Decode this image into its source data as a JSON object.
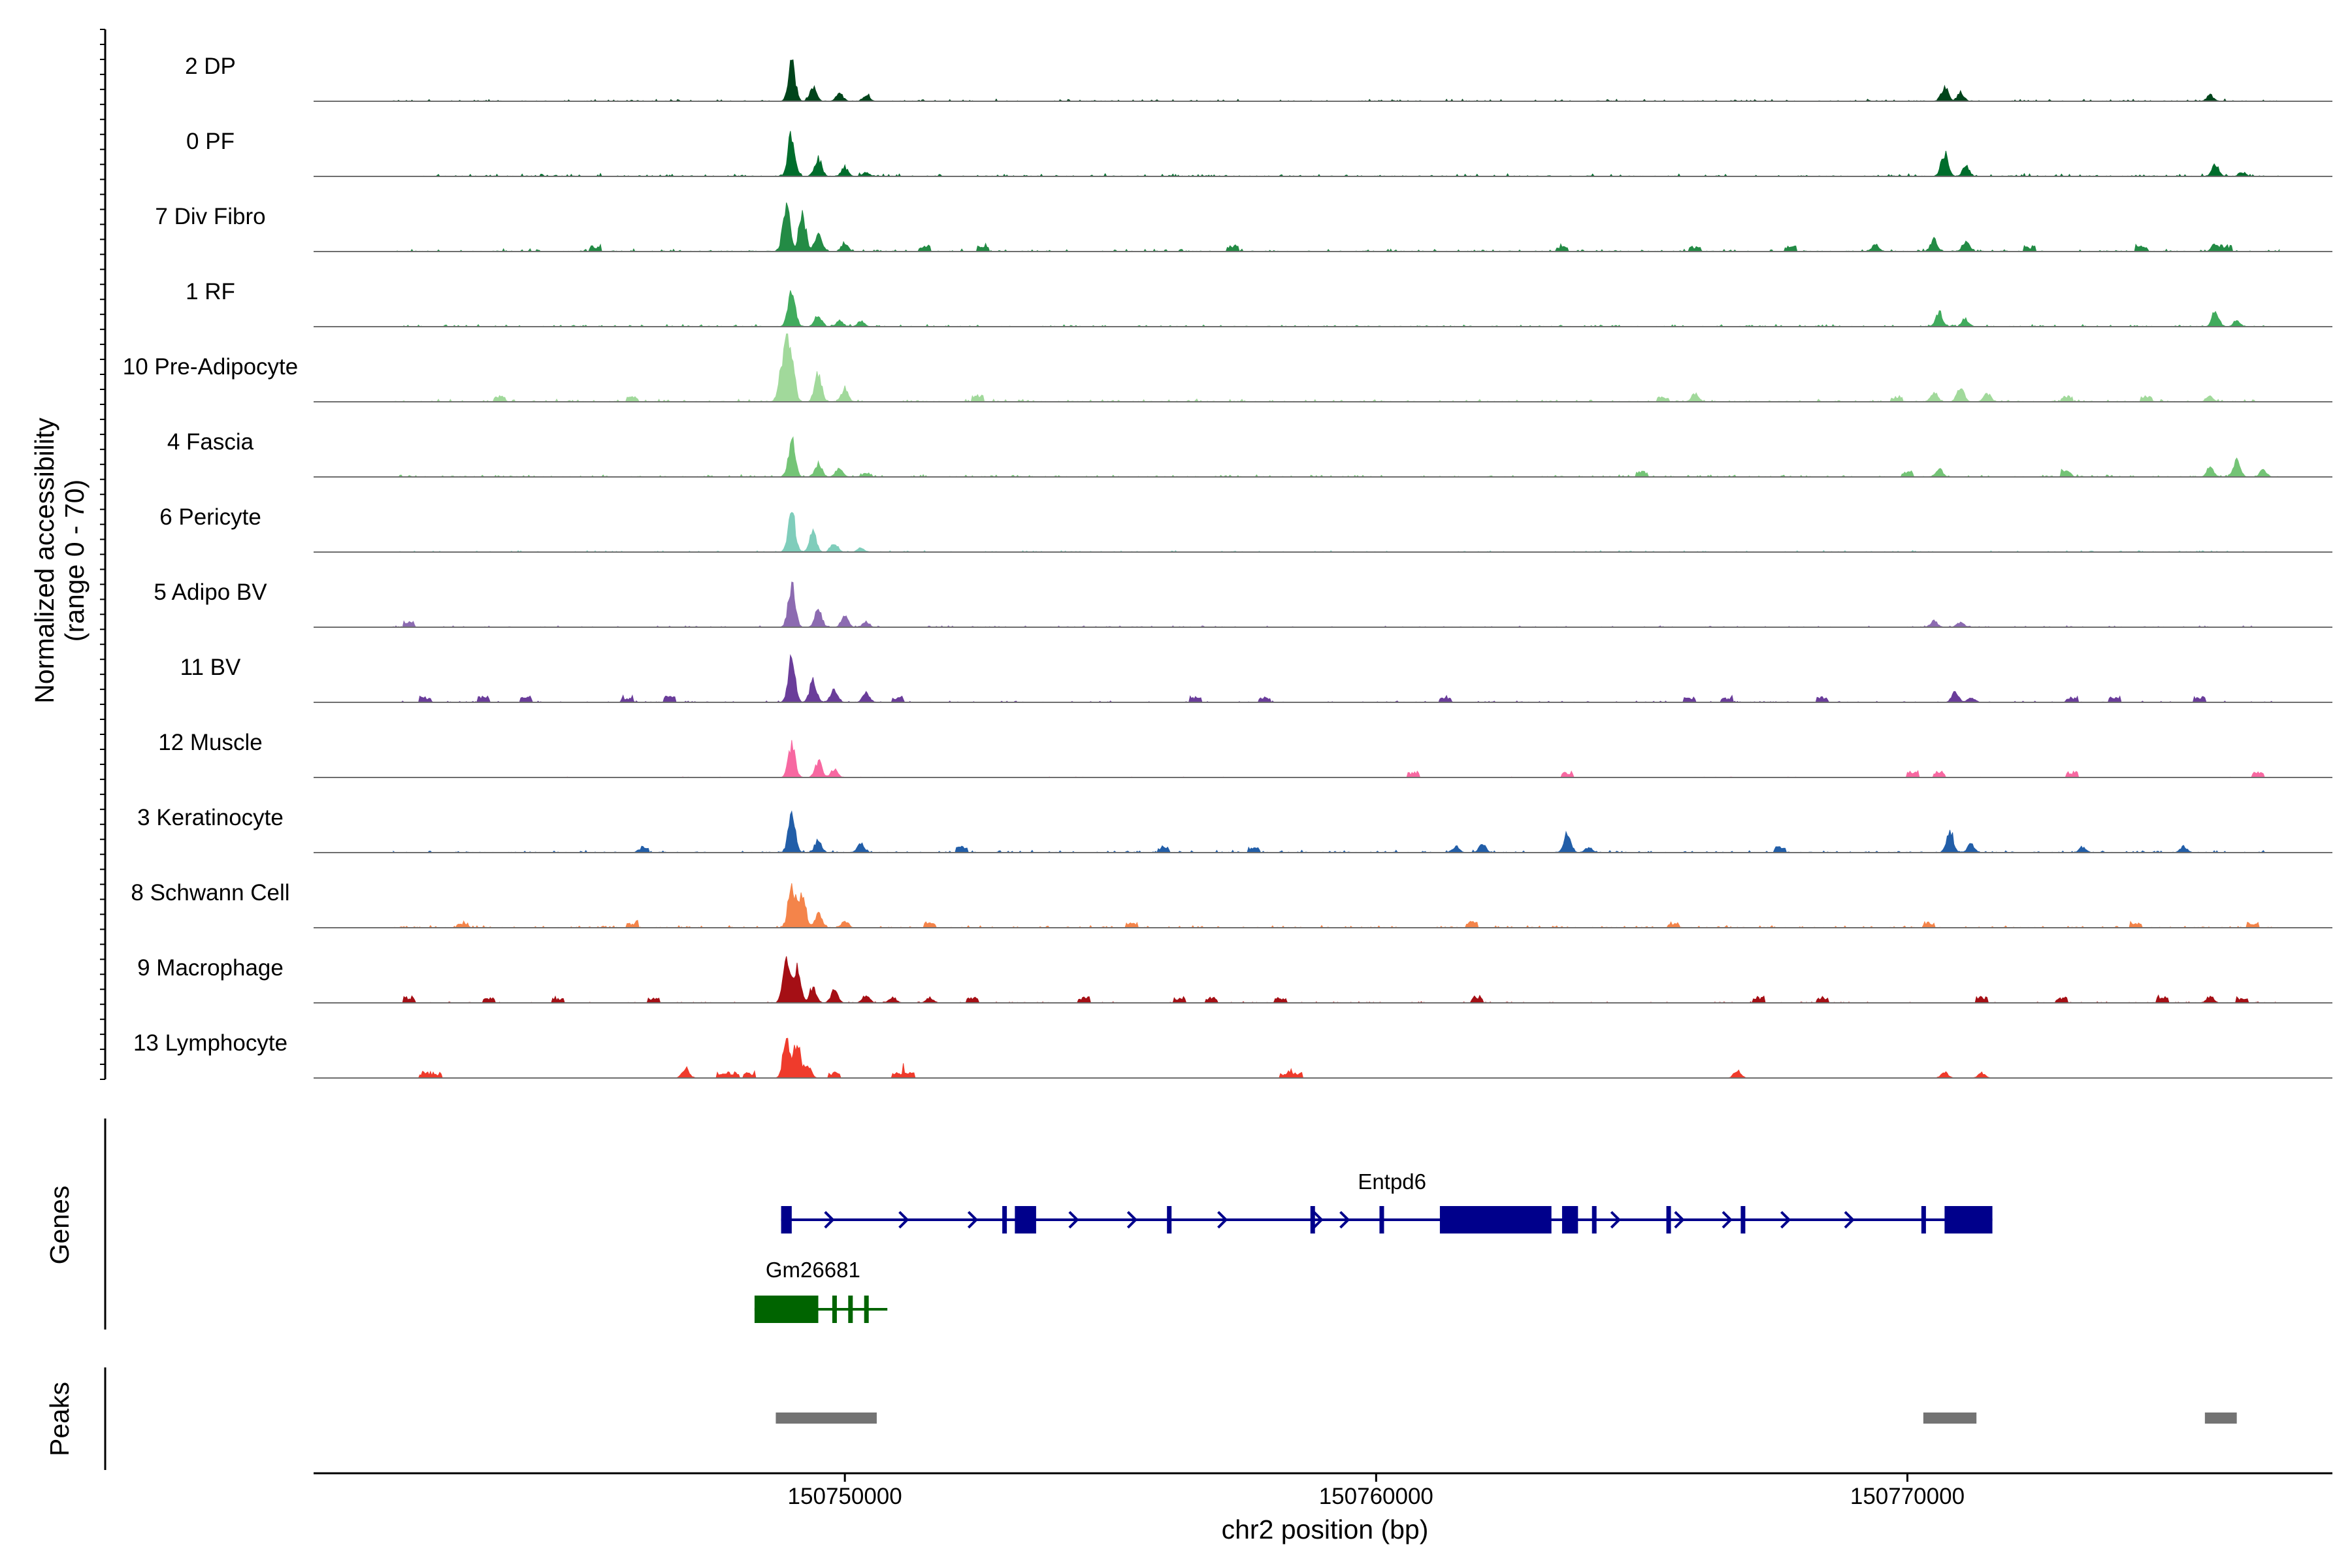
{
  "chart_data": {
    "type": "area",
    "title": "",
    "chromosome": "chr2",
    "xlabel": "chr2 position (bp)",
    "ylabel_line1": "Normalized accessibility",
    "ylabel_line2": "(range 0 - 70)",
    "y_range": [
      0,
      70
    ],
    "xlim": [
      150740000,
      150778000
    ],
    "x_ticks": [
      150750000,
      150760000,
      150770000
    ],
    "x_tick_labels": [
      "150750000",
      "150760000",
      "150770000"
    ],
    "tracks": [
      {
        "name": "2 DP",
        "color": "#00441b",
        "peaks": [
          [
            150749000,
            40
          ],
          [
            150749400,
            14
          ],
          [
            150749900,
            8
          ],
          [
            150750400,
            6
          ],
          [
            150770700,
            14
          ],
          [
            150771000,
            8
          ],
          [
            150775700,
            6
          ]
        ],
        "noise": 1.2,
        "minor": []
      },
      {
        "name": "0 PF",
        "color": "#006d2c",
        "peaks": [
          [
            150749000,
            44
          ],
          [
            150749500,
            18
          ],
          [
            150750000,
            9
          ],
          [
            150750400,
            4
          ],
          [
            150770700,
            24
          ],
          [
            150771100,
            10
          ],
          [
            150775800,
            12
          ],
          [
            150776300,
            4
          ]
        ],
        "noise": 1.5,
        "minor": []
      },
      {
        "name": "7 Div Fibro",
        "color": "#238b45",
        "peaks": [
          [
            150748900,
            50
          ],
          [
            150749200,
            38
          ],
          [
            150749500,
            18
          ],
          [
            150750000,
            8
          ],
          [
            150770500,
            12
          ],
          [
            150771100,
            10
          ],
          [
            150769400,
            7
          ],
          [
            150775800,
            8
          ]
        ],
        "noise": 1.5,
        "minor": [
          150745300,
          150751500,
          150752600,
          150757300,
          150763500,
          150766000,
          150767800,
          150772300,
          150774400,
          150776000
        ]
      },
      {
        "name": "1 RF",
        "color": "#41ab5d",
        "peaks": [
          [
            150749000,
            42
          ],
          [
            150749500,
            12
          ],
          [
            150749900,
            6
          ],
          [
            150750300,
            5
          ],
          [
            150770600,
            14
          ],
          [
            150771100,
            7
          ],
          [
            150775800,
            16
          ],
          [
            150776200,
            6
          ]
        ],
        "noise": 1.2,
        "minor": []
      },
      {
        "name": "10 Pre-Adipocyte",
        "color": "#a1d99b",
        "peaks": [
          [
            150748900,
            50
          ],
          [
            150749000,
            36
          ],
          [
            150749500,
            26
          ],
          [
            150748800,
            22
          ],
          [
            150750000,
            12
          ],
          [
            150770500,
            10
          ],
          [
            150771000,
            14
          ],
          [
            150771500,
            9
          ],
          [
            150766000,
            8
          ],
          [
            150775700,
            5
          ]
        ],
        "noise": 1.5,
        "minor": [
          150743500,
          150746000,
          150752500,
          150765400,
          150769800,
          150773000,
          150774500
        ]
      },
      {
        "name": "4 Fascia",
        "color": "#74c476",
        "peaks": [
          [
            150749000,
            36
          ],
          [
            150749500,
            14
          ],
          [
            150749900,
            8
          ],
          [
            150750400,
            4
          ],
          [
            150770600,
            8
          ],
          [
            150775700,
            10
          ],
          [
            150776200,
            16
          ],
          [
            150776700,
            7
          ]
        ],
        "noise": 1.2,
        "minor": [
          150765000,
          150770000,
          150773000
        ]
      },
      {
        "name": "6 Pericyte",
        "color": "#7fcdbb",
        "peaks": [
          [
            150749000,
            44
          ],
          [
            150749400,
            20
          ],
          [
            150749800,
            10
          ],
          [
            150750300,
            4
          ]
        ],
        "noise": 0.8,
        "minor": []
      },
      {
        "name": "5 Adipo BV",
        "color": "#8c6bb1",
        "peaks": [
          [
            150749000,
            46
          ],
          [
            150749500,
            18
          ],
          [
            150750000,
            10
          ],
          [
            150750400,
            5
          ],
          [
            150770500,
            6
          ],
          [
            150771000,
            5
          ]
        ],
        "noise": 0.8,
        "minor": [
          150741800
        ]
      },
      {
        "name": "11 BV",
        "color": "#6a3d9a",
        "peaks": [
          [
            150749000,
            48
          ],
          [
            150749400,
            22
          ],
          [
            150749800,
            14
          ],
          [
            150750400,
            10
          ],
          [
            150770900,
            10
          ],
          [
            150771200,
            5
          ]
        ],
        "noise": 0.8,
        "minor": [
          150742100,
          150743200,
          150744000,
          150745900,
          150746700,
          150751000,
          150756600,
          150757900,
          150761300,
          150765900,
          150766600,
          150768400,
          150773100,
          150773900,
          150775500
        ]
      },
      {
        "name": "12 Muscle",
        "color": "#f768a1",
        "peaks": [
          [
            150749000,
            34
          ],
          [
            150749500,
            16
          ],
          [
            150749800,
            8
          ]
        ],
        "noise": 0.3,
        "minor": [
          150760700,
          150763600,
          150770100,
          150770600,
          150773100,
          150776600
        ]
      },
      {
        "name": "3 Keratinocyte",
        "color": "#225ea8",
        "peaks": [
          [
            150749000,
            38
          ],
          [
            150749500,
            12
          ],
          [
            150750300,
            9
          ],
          [
            150761500,
            6
          ],
          [
            150762000,
            9
          ],
          [
            150763600,
            22
          ],
          [
            150764000,
            5
          ],
          [
            150770800,
            22
          ],
          [
            150771200,
            8
          ],
          [
            150773300,
            5
          ],
          [
            150775200,
            6
          ]
        ],
        "noise": 1.3,
        "minor": [
          150746200,
          150752200,
          150756000,
          150757700,
          150767600
        ]
      },
      {
        "name": "8 Schwann Cell",
        "color": "#f4844a",
        "peaks": [
          [
            150749000,
            46
          ],
          [
            150749200,
            34
          ],
          [
            150749500,
            14
          ],
          [
            150750000,
            6
          ]
        ],
        "noise": 1.2,
        "minor": [
          150742800,
          150746000,
          150751600,
          150755400,
          150761800,
          150765600,
          150770400,
          150774300,
          150776500
        ]
      },
      {
        "name": "9 Macrophage",
        "color": "#a50f15",
        "peaks": [
          [
            150748900,
            50
          ],
          [
            150749100,
            34
          ],
          [
            150749400,
            16
          ],
          [
            150749800,
            12
          ],
          [
            150750400,
            8
          ],
          [
            150750900,
            6
          ],
          [
            150751600,
            5
          ],
          [
            150775700,
            6
          ]
        ],
        "noise": 0.6,
        "minor": [
          150741800,
          150743300,
          150744600,
          150746400,
          150752400,
          150754500,
          150756300,
          150756900,
          150758200,
          150761900,
          150767200,
          150768400,
          150771400,
          150772900,
          150774800,
          150776300
        ]
      },
      {
        "name": "13 Lymphocyte",
        "color": "#ef3b2c",
        "peaks": [
          [
            150748900,
            40
          ],
          [
            150749100,
            34
          ],
          [
            150749300,
            12
          ],
          [
            150747000,
            10
          ],
          [
            150766800,
            8
          ],
          [
            150770700,
            6
          ],
          [
            150771400,
            5
          ]
        ],
        "noise": 0.2,
        "minor": [
          150742100,
          150742300,
          150747700,
          150747900,
          150748200,
          150749800,
          150751000,
          150751200,
          150758300,
          150758500
        ]
      }
    ],
    "genes_label": "Genes",
    "genes": [
      {
        "name": "Entpd6",
        "strand": "+",
        "color": "#00008b",
        "start": 150748800,
        "end": 150771600,
        "exons": [
          [
            150748800,
            150749000
          ],
          [
            150753200,
            150753600
          ],
          [
            150761200,
            150763300
          ],
          [
            150763500,
            150763800
          ],
          [
            150770700,
            150771600
          ]
        ],
        "thin_exons": [
          150753000,
          150756100,
          150758800,
          150760100,
          150764100,
          150765500,
          150766900,
          150770300
        ],
        "arrows": [
          150749700,
          150751100,
          150752400,
          150754300,
          150755400,
          150757100,
          150758900,
          150759400,
          150764500,
          150765700,
          150766600,
          150767700,
          150768900
        ]
      },
      {
        "name": "Gm26681",
        "strand": "-",
        "color": "#006400",
        "start": 150748300,
        "end": 150750800,
        "exons": [
          [
            150748300,
            150749500
          ]
        ],
        "thin_exons": [
          150749800,
          150750100,
          150750400
        ]
      }
    ],
    "peaks_label": "Peaks",
    "peaks_color": "#737373",
    "peak_regions": [
      [
        150748700,
        150750600
      ],
      [
        150770300,
        150771300
      ],
      [
        150775600,
        150776200
      ]
    ]
  }
}
